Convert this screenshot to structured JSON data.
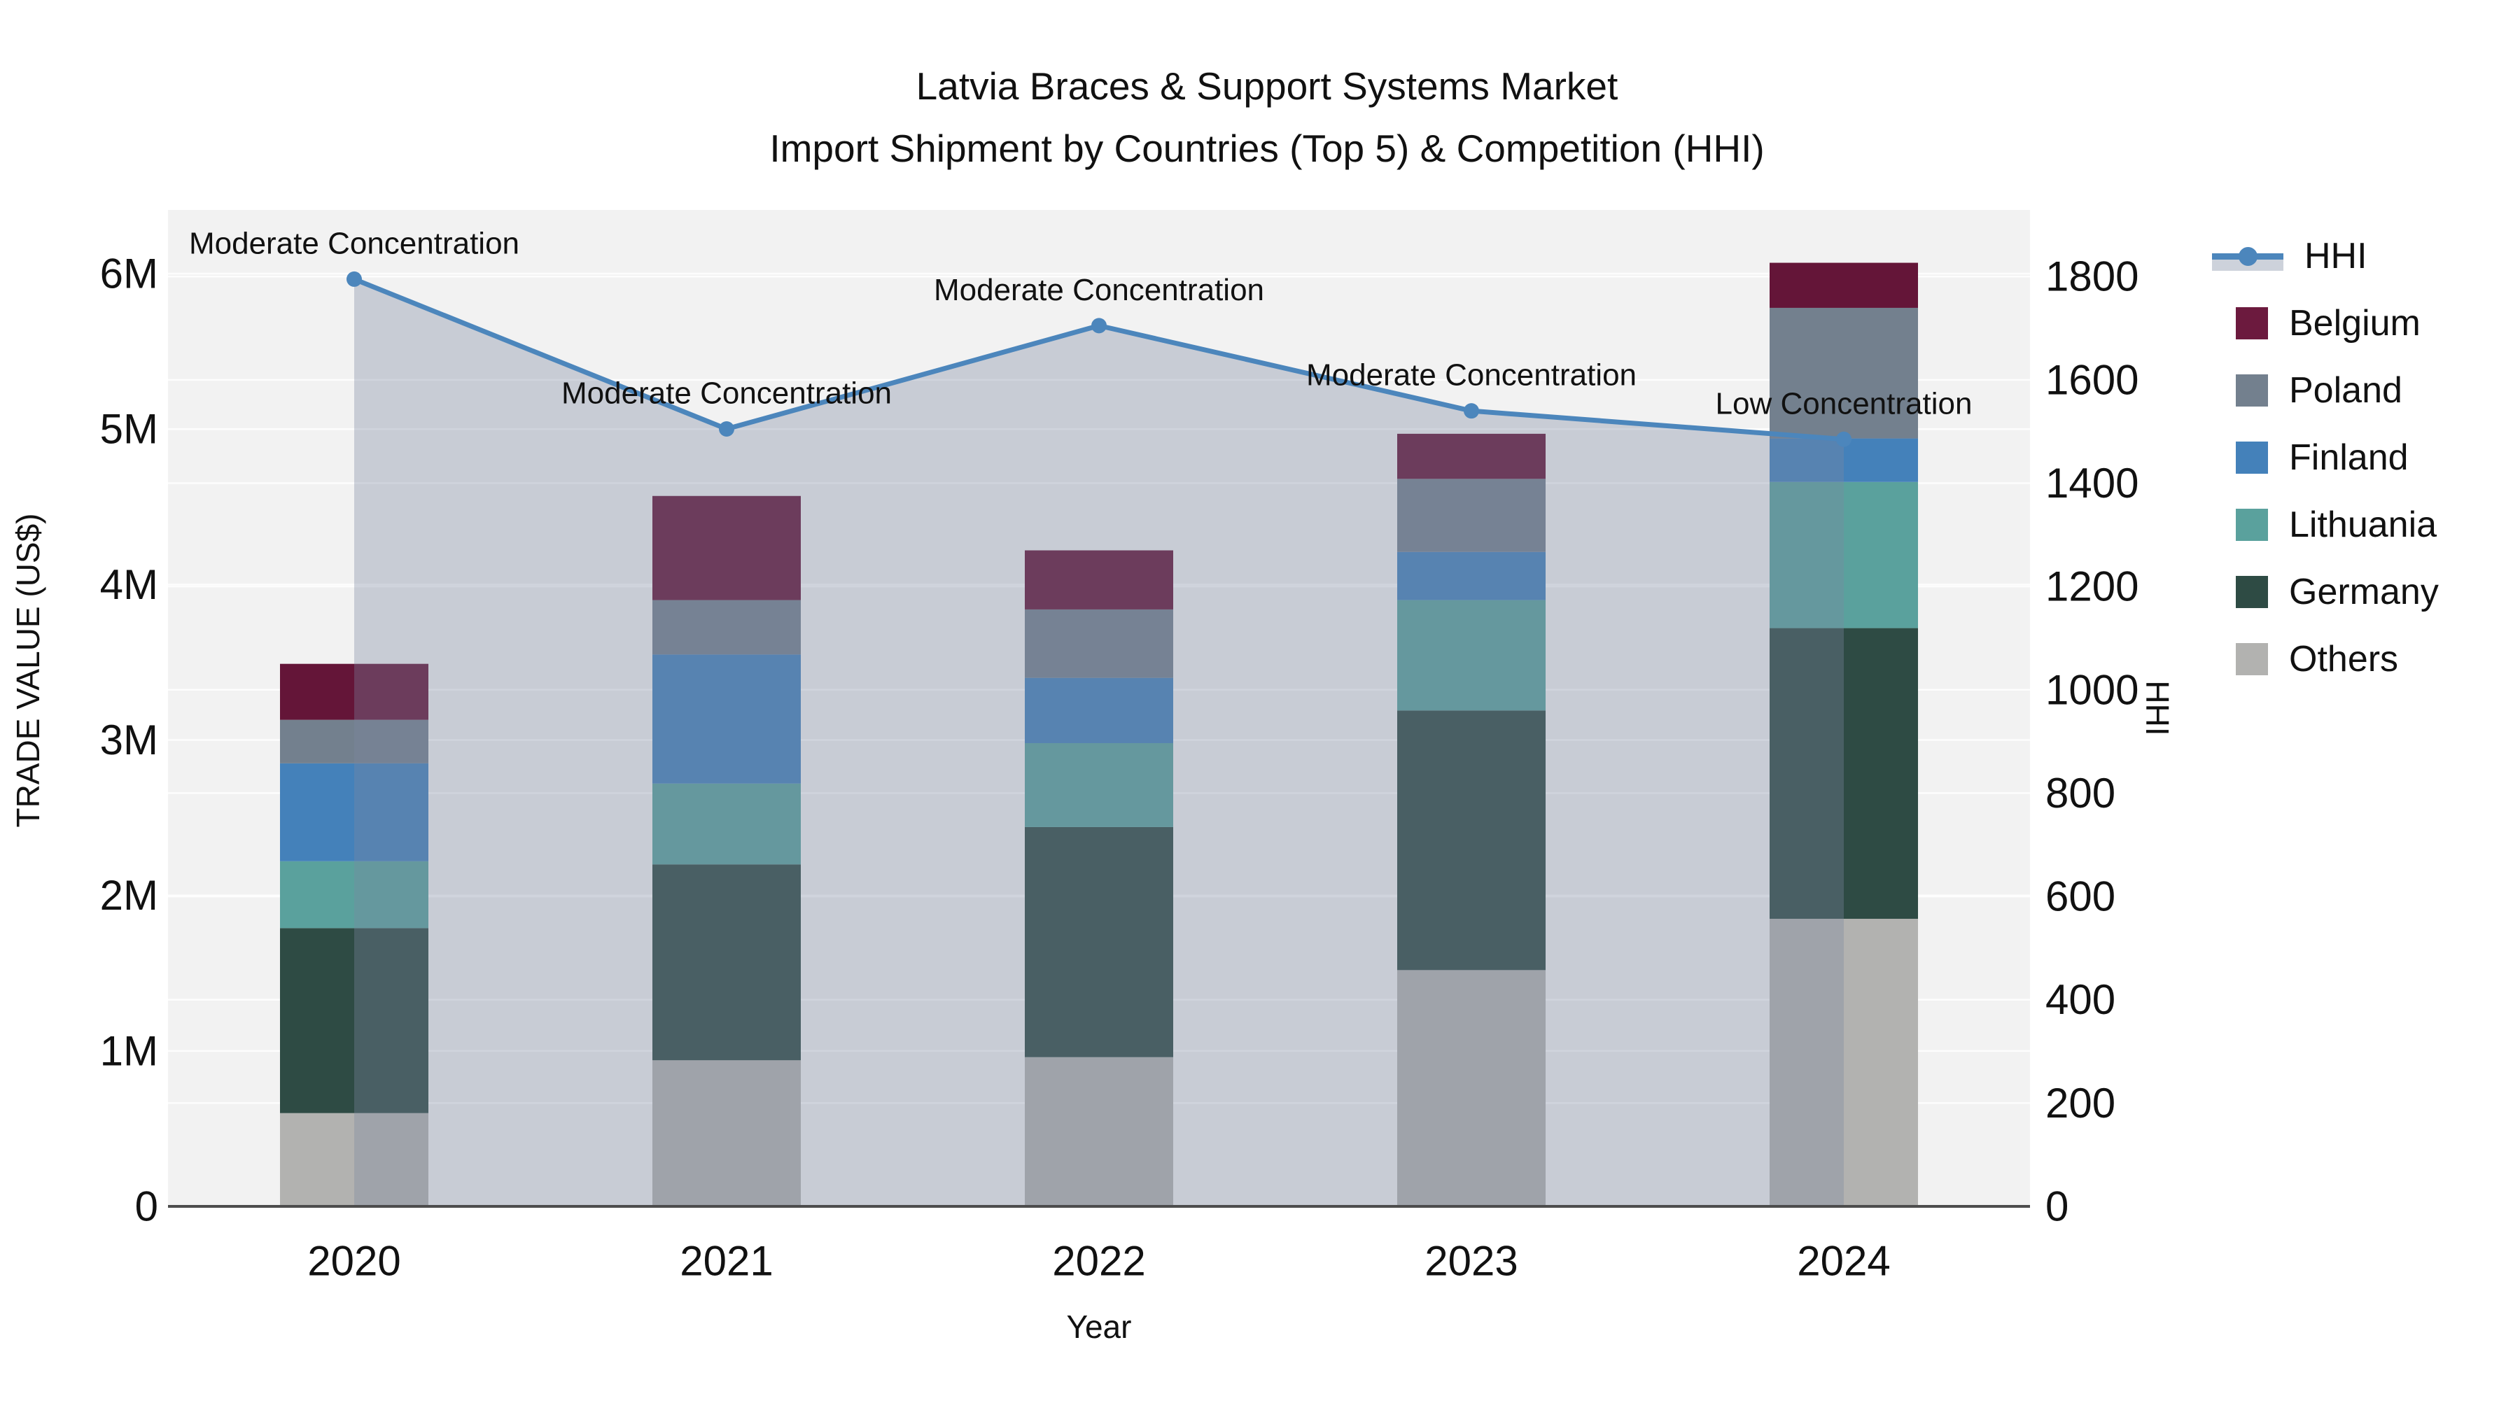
{
  "chart_data": {
    "type": "bar",
    "variant": "stacked-bar-with-line-overlay-and-area-fill",
    "title": "Latvia Braces & Support Systems Market",
    "subtitle": "Import Shipment by Countries (Top 5) & Competition (HHI)",
    "xlabel": "Year",
    "ylabel_left": "TRADE VALUE (US$)",
    "ylabel_right": "HHI",
    "categories": [
      "2020",
      "2021",
      "2022",
      "2023",
      "2024"
    ],
    "unit_left": "millions of US$",
    "series": [
      {
        "name": "Others",
        "color": "#B2B2B0",
        "values": [
          0.6,
          0.94,
          0.96,
          1.52,
          1.85
        ]
      },
      {
        "name": "Germany",
        "color": "#2E4B44",
        "values": [
          1.19,
          1.26,
          1.48,
          1.67,
          1.87
        ]
      },
      {
        "name": "Lithuania",
        "color": "#5AA19D",
        "values": [
          0.43,
          0.52,
          0.54,
          0.71,
          0.94
        ]
      },
      {
        "name": "Finland",
        "color": "#4481BA",
        "values": [
          0.63,
          0.83,
          0.42,
          0.31,
          0.28
        ]
      },
      {
        "name": "Poland",
        "color": "#73808E",
        "values": [
          0.28,
          0.35,
          0.44,
          0.47,
          0.84
        ]
      },
      {
        "name": "Belgium",
        "color": "#641538",
        "values": [
          0.36,
          0.67,
          0.38,
          0.29,
          0.29
        ]
      }
    ],
    "bar_totals": [
      3.49,
      4.57,
      4.22,
      4.97,
      6.07
    ],
    "hhi": {
      "name": "HHI",
      "color": "#4C86BC",
      "area_fill_color": "rgba(123,135,161,0.35)",
      "values": [
        1795,
        1505,
        1705,
        1540,
        1485
      ],
      "annotations": [
        "Moderate Concentration",
        "Moderate Concentration",
        "Moderate Concentration",
        "Moderate Concentration",
        "Low Concentration"
      ]
    },
    "y_left": {
      "range": [
        0,
        6.41
      ],
      "ticks": [
        0,
        1,
        2,
        3,
        4,
        5,
        6
      ],
      "tick_labels": [
        "0",
        "1M",
        "2M",
        "3M",
        "4M",
        "5M",
        "6M"
      ]
    },
    "y_right": {
      "range": [
        0,
        1929
      ],
      "ticks": [
        0,
        200,
        400,
        600,
        800,
        1000,
        1200,
        1400,
        1600,
        1800
      ],
      "tick_labels": [
        "0",
        "200",
        "400",
        "600",
        "800",
        "1000",
        "1200",
        "1400",
        "1600",
        "1800"
      ]
    },
    "grid": true,
    "plot_bg": "#F2F2F2",
    "grid_color": "#FFFFFF",
    "axis_line_color": "#4D4D4D",
    "legend_position": "right"
  },
  "legend": {
    "entries": [
      {
        "label": "HHI",
        "type": "line",
        "color": "#4C86BC",
        "band_color": "#CDD2DB"
      },
      {
        "label": "Belgium",
        "type": "box",
        "color": "#6C1A3E"
      },
      {
        "label": "Poland",
        "type": "box",
        "color": "#73808E"
      },
      {
        "label": "Finland",
        "type": "box",
        "color": "#4481BA"
      },
      {
        "label": "Lithuania",
        "type": "box",
        "color": "#5AA19D"
      },
      {
        "label": "Germany",
        "type": "box",
        "color": "#2E4B44"
      },
      {
        "label": "Others",
        "type": "box",
        "color": "#B2B2B0"
      }
    ]
  }
}
